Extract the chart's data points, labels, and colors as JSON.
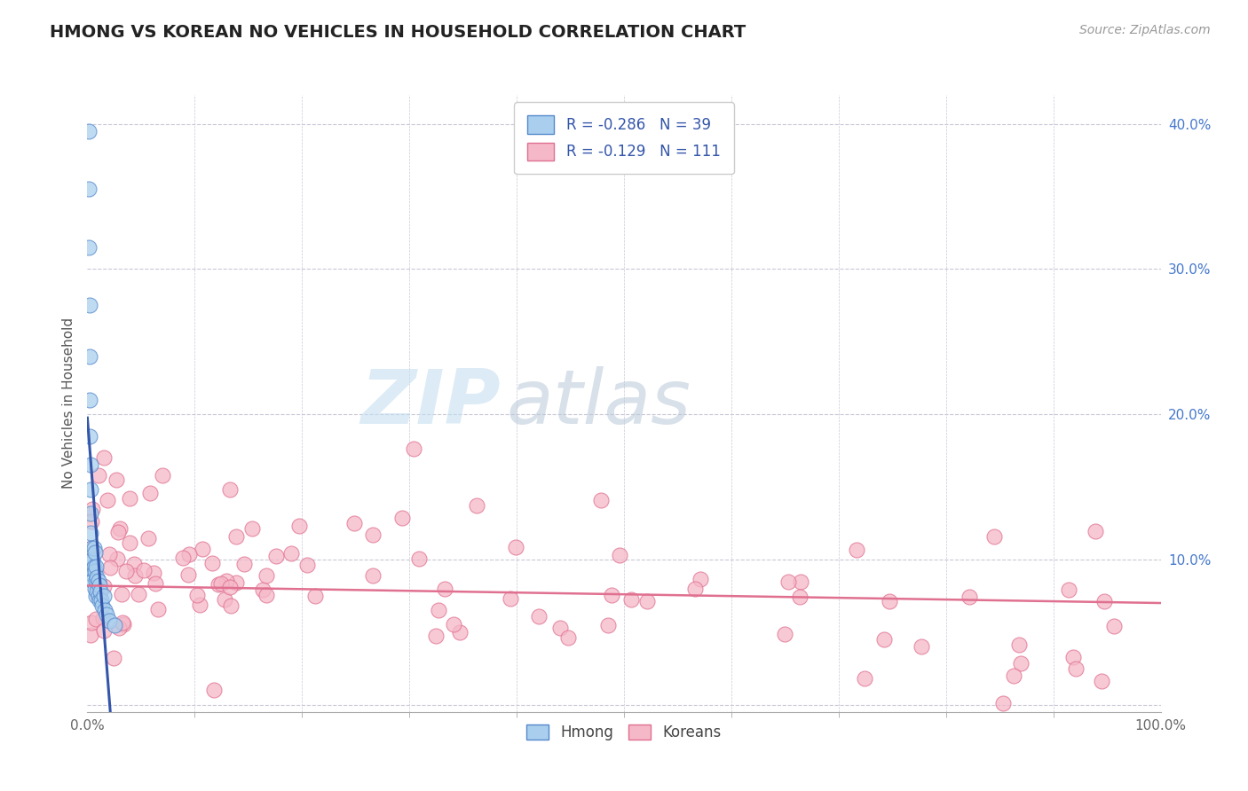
{
  "title": "HMONG VS KOREAN NO VEHICLES IN HOUSEHOLD CORRELATION CHART",
  "source_text": "Source: ZipAtlas.com",
  "ylabel": "No Vehicles in Household",
  "watermark_zip": "ZIP",
  "watermark_atlas": "atlas",
  "xlim": [
    0.0,
    1.0
  ],
  "ylim": [
    -0.005,
    0.42
  ],
  "yticks": [
    0.0,
    0.1,
    0.2,
    0.3,
    0.4
  ],
  "ytick_labels": [
    "",
    "10.0%",
    "20.0%",
    "30.0%",
    "40.0%"
  ],
  "xtick_left_label": "0.0%",
  "xtick_right_label": "100.0%",
  "hmong_color": "#aacfee",
  "korean_color": "#f5b8c8",
  "hmong_edge_color": "#5588cc",
  "korean_edge_color": "#e07090",
  "hmong_line_color": "#3355aa",
  "korean_line_color": "#e07090",
  "hmong_R": -0.286,
  "hmong_N": 39,
  "korean_R": -0.129,
  "korean_N": 111,
  "legend_text_color": "#3355aa",
  "title_color": "#222222",
  "ylabel_color": "#555555",
  "ytick_color": "#4477cc",
  "background_color": "#ffffff",
  "grid_color": "#c8c8d8",
  "bottom_legend_label1": "Hmong",
  "bottom_legend_label2": "Koreans"
}
